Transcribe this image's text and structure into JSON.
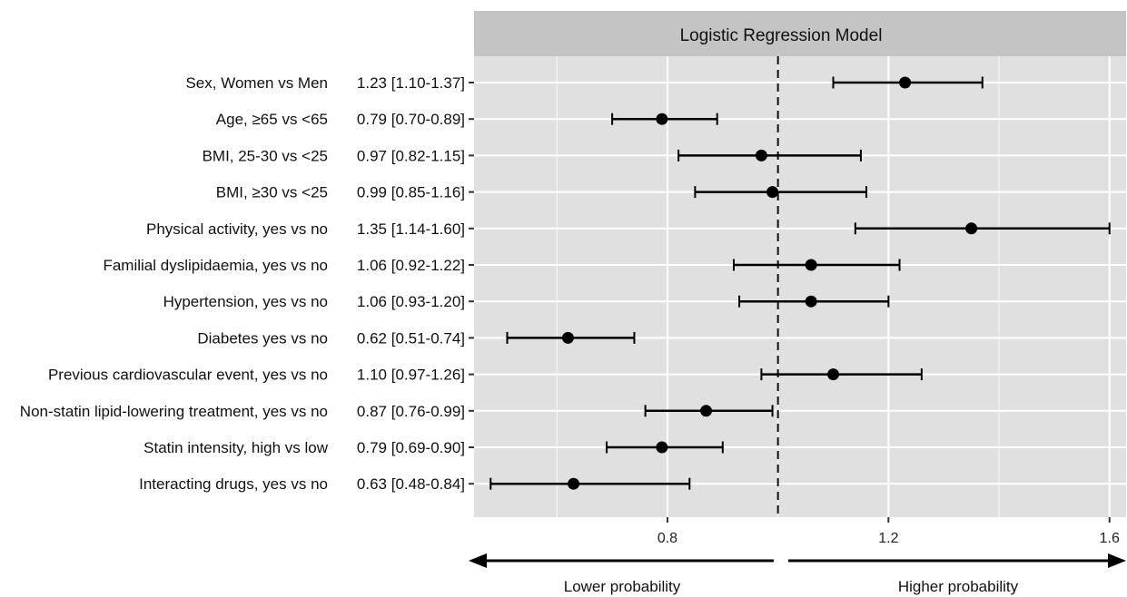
{
  "chart_data": {
    "type": "forest",
    "title": "Logistic Regression Model",
    "x_ticks": [
      0.8,
      1.2,
      1.6
    ],
    "xlim": [
      0.45,
      1.63
    ],
    "reference_line": 1.0,
    "grid": true,
    "rows": [
      {
        "label": "Sex, Women vs Men",
        "estimate": 1.23,
        "lower": 1.1,
        "upper": 1.37,
        "ci_text": "1.23 [1.10-1.37]"
      },
      {
        "label": "Age, ≥65 vs <65",
        "estimate": 0.79,
        "lower": 0.7,
        "upper": 0.89,
        "ci_text": "0.79 [0.70-0.89]"
      },
      {
        "label": "BMI, 25-30 vs <25",
        "estimate": 0.97,
        "lower": 0.82,
        "upper": 1.15,
        "ci_text": "0.97 [0.82-1.15]"
      },
      {
        "label": "BMI, ≥30 vs <25",
        "estimate": 0.99,
        "lower": 0.85,
        "upper": 1.16,
        "ci_text": "0.99 [0.85-1.16]"
      },
      {
        "label": "Physical activity, yes vs no",
        "estimate": 1.35,
        "lower": 1.14,
        "upper": 1.6,
        "ci_text": "1.35 [1.14-1.60]"
      },
      {
        "label": "Familial dyslipidaemia, yes vs no",
        "estimate": 1.06,
        "lower": 0.92,
        "upper": 1.22,
        "ci_text": "1.06 [0.92-1.22]"
      },
      {
        "label": "Hypertension, yes vs no",
        "estimate": 1.06,
        "lower": 0.93,
        "upper": 1.2,
        "ci_text": "1.06 [0.93-1.20]"
      },
      {
        "label": "Diabetes yes vs no",
        "estimate": 0.62,
        "lower": 0.51,
        "upper": 0.74,
        "ci_text": "0.62 [0.51-0.74]"
      },
      {
        "label": "Previous cardiovascular event, yes vs no",
        "estimate": 1.1,
        "lower": 0.97,
        "upper": 1.26,
        "ci_text": "1.10 [0.97-1.26]"
      },
      {
        "label": "Non-statin lipid-lowering treatment, yes vs no",
        "estimate": 0.87,
        "lower": 0.76,
        "upper": 0.99,
        "ci_text": "0.87 [0.76-0.99]"
      },
      {
        "label": "Statin intensity, high vs low",
        "estimate": 0.79,
        "lower": 0.69,
        "upper": 0.9,
        "ci_text": "0.79 [0.69-0.90]"
      },
      {
        "label": "Interacting drugs, yes vs no",
        "estimate": 0.63,
        "lower": 0.48,
        "upper": 0.84,
        "ci_text": "0.63 [0.48-0.84]"
      }
    ],
    "direction_labels": {
      "lower": "Lower probability",
      "higher": "Higher probability"
    }
  },
  "colors": {
    "panel_bg": "#e0e0e0",
    "strip_bg": "#c4c4c4",
    "grid": "#ffffff",
    "marks": "#000000"
  }
}
